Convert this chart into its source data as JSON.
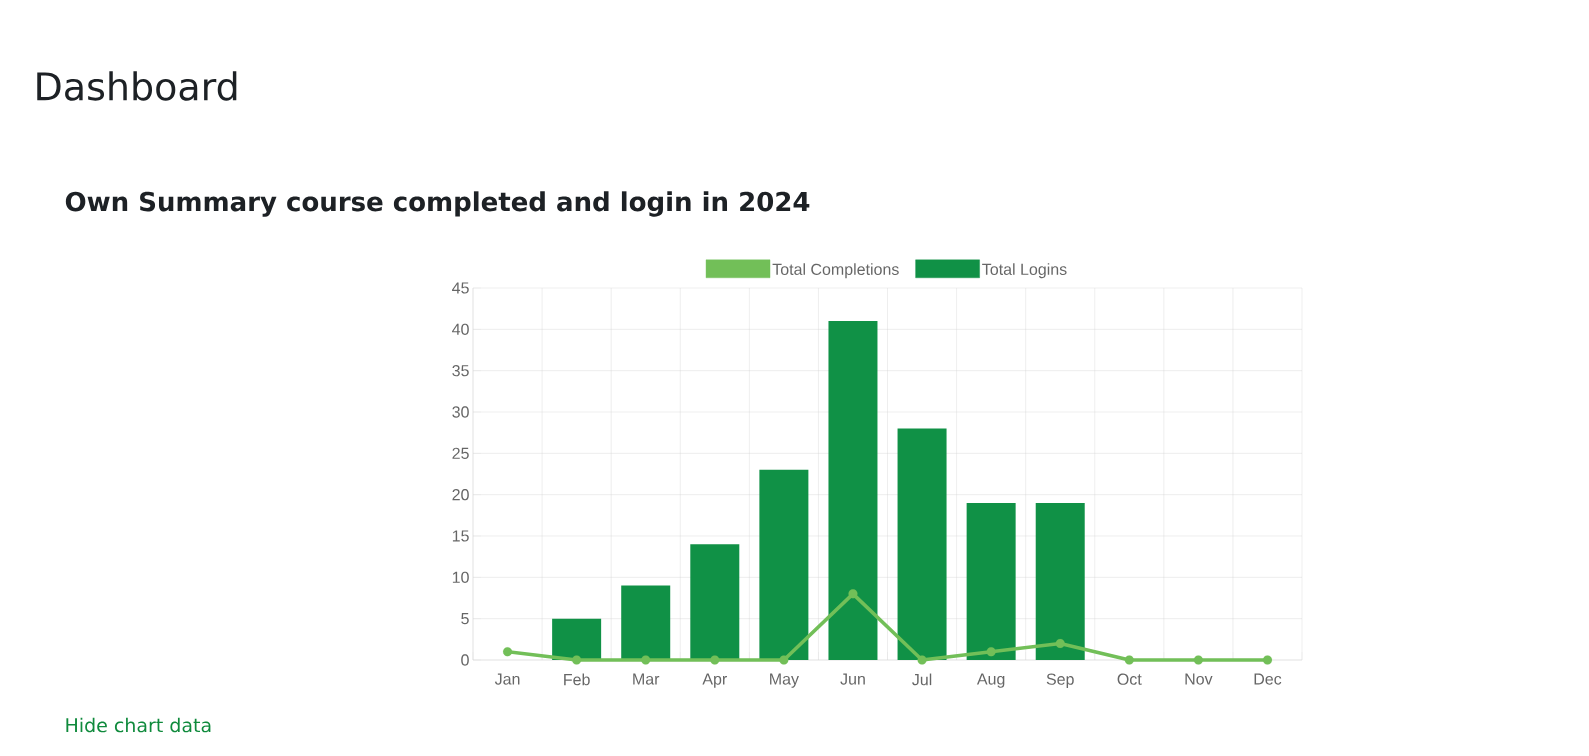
{
  "chart_data": {
    "type": "bar",
    "title": "Dashboard",
    "subtitle": "Own Summary course completed and login in 2024",
    "categories": [
      "Jan",
      "Feb",
      "Mar",
      "Apr",
      "May",
      "Jun",
      "Jul",
      "Aug",
      "Sep",
      "Oct",
      "Nov",
      "Dec"
    ],
    "series": [
      {
        "name": "Total Completions",
        "type": "line",
        "color": "#72bf58",
        "values": [
          1,
          0,
          0,
          0,
          0,
          8,
          0,
          1,
          2,
          0,
          0,
          0
        ]
      },
      {
        "name": "Total Logins",
        "color": "#109146",
        "values": [
          0,
          5,
          9,
          14,
          23,
          41,
          28,
          19,
          19,
          0,
          0,
          0
        ]
      }
    ],
    "ylim": [
      0,
      45
    ],
    "yticks": [
      0,
      5,
      10,
      15,
      20,
      25,
      30,
      35,
      40,
      45
    ],
    "grid": true,
    "legend": "top",
    "marker": "circle",
    "annotations": [
      "Hide chart data"
    ]
  }
}
